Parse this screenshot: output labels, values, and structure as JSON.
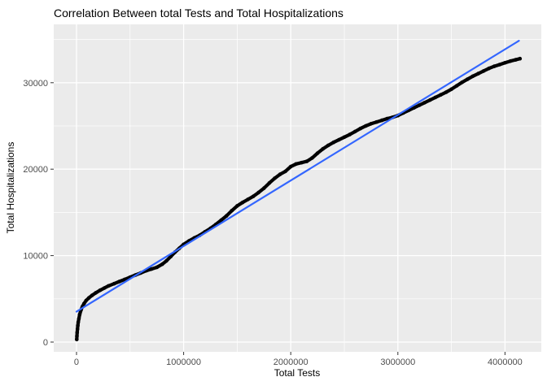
{
  "chart_data": {
    "type": "scatter",
    "title": "Correlation Between total Tests and Total Hospitalizations",
    "xlabel": "Total Tests",
    "ylabel": "Total Hospitalizations",
    "x_ticks": [
      0,
      1000000,
      2000000,
      3000000,
      4000000
    ],
    "x_tick_labels": [
      "0",
      "1000000",
      "2000000",
      "3000000",
      "4000000"
    ],
    "y_ticks": [
      0,
      10000,
      20000,
      30000
    ],
    "y_tick_labels": [
      "0",
      "10000",
      "20000",
      "30000"
    ],
    "x_minor_ticks": [
      500000,
      1500000,
      2500000,
      3500000
    ],
    "y_minor_ticks": [
      5000,
      15000,
      25000,
      35000
    ],
    "xlim": [
      -212766,
      4339000
    ],
    "ylim": [
      -1128,
      36748
    ],
    "grid": true,
    "legend": "none",
    "panel_bg": "#EBEBEB",
    "grid_color": "#FFFFFF",
    "point_color": "#000000",
    "tick_label_color": "#4D4D4D",
    "tick_mark_color": "#333333",
    "trend_line": {
      "name": "linear-fit",
      "color": "#3366FF",
      "x": [
        0,
        4130000
      ],
      "y": [
        3520,
        34850
      ]
    },
    "points": [
      [
        2000,
        300
      ],
      [
        4000,
        700
      ],
      [
        6000,
        1100
      ],
      [
        9000,
        1500
      ],
      [
        12000,
        1900
      ],
      [
        16000,
        2300
      ],
      [
        22000,
        2700
      ],
      [
        30000,
        3200
      ],
      [
        42000,
        3700
      ],
      [
        55000,
        4100
      ],
      [
        70000,
        4450
      ],
      [
        90000,
        4800
      ],
      [
        115000,
        5100
      ],
      [
        145000,
        5400
      ],
      [
        180000,
        5700
      ],
      [
        220000,
        6000
      ],
      [
        260000,
        6250
      ],
      [
        300000,
        6500
      ],
      [
        350000,
        6750
      ],
      [
        400000,
        7000
      ],
      [
        450000,
        7250
      ],
      [
        500000,
        7500
      ],
      [
        550000,
        7750
      ],
      [
        600000,
        8000
      ],
      [
        650000,
        8250
      ],
      [
        700000,
        8450
      ],
      [
        750000,
        8650
      ],
      [
        800000,
        9000
      ],
      [
        840000,
        9400
      ],
      [
        880000,
        9900
      ],
      [
        920000,
        10400
      ],
      [
        960000,
        10850
      ],
      [
        1000000,
        11300
      ],
      [
        1050000,
        11700
      ],
      [
        1100000,
        12050
      ],
      [
        1150000,
        12350
      ],
      [
        1200000,
        12750
      ],
      [
        1250000,
        13150
      ],
      [
        1300000,
        13600
      ],
      [
        1350000,
        14100
      ],
      [
        1400000,
        14600
      ],
      [
        1450000,
        15200
      ],
      [
        1500000,
        15750
      ],
      [
        1550000,
        16150
      ],
      [
        1600000,
        16500
      ],
      [
        1650000,
        16850
      ],
      [
        1700000,
        17300
      ],
      [
        1750000,
        17800
      ],
      [
        1800000,
        18400
      ],
      [
        1850000,
        18950
      ],
      [
        1900000,
        19400
      ],
      [
        1950000,
        19750
      ],
      [
        2000000,
        20300
      ],
      [
        2050000,
        20600
      ],
      [
        2100000,
        20750
      ],
      [
        2150000,
        20900
      ],
      [
        2200000,
        21300
      ],
      [
        2250000,
        21850
      ],
      [
        2300000,
        22350
      ],
      [
        2350000,
        22750
      ],
      [
        2400000,
        23100
      ],
      [
        2450000,
        23400
      ],
      [
        2500000,
        23700
      ],
      [
        2550000,
        24000
      ],
      [
        2600000,
        24350
      ],
      [
        2650000,
        24700
      ],
      [
        2700000,
        25000
      ],
      [
        2750000,
        25250
      ],
      [
        2800000,
        25450
      ],
      [
        2850000,
        25650
      ],
      [
        2900000,
        25850
      ],
      [
        2950000,
        26000
      ],
      [
        3000000,
        26200
      ],
      [
        3050000,
        26500
      ],
      [
        3100000,
        26800
      ],
      [
        3150000,
        27100
      ],
      [
        3200000,
        27400
      ],
      [
        3250000,
        27700
      ],
      [
        3300000,
        28000
      ],
      [
        3350000,
        28300
      ],
      [
        3400000,
        28600
      ],
      [
        3450000,
        28900
      ],
      [
        3500000,
        29250
      ],
      [
        3550000,
        29650
      ],
      [
        3600000,
        30050
      ],
      [
        3650000,
        30400
      ],
      [
        3700000,
        30750
      ],
      [
        3750000,
        31050
      ],
      [
        3800000,
        31350
      ],
      [
        3850000,
        31650
      ],
      [
        3900000,
        31900
      ],
      [
        3950000,
        32100
      ],
      [
        4000000,
        32300
      ],
      [
        4050000,
        32500
      ],
      [
        4100000,
        32650
      ],
      [
        4140000,
        32780
      ]
    ]
  }
}
